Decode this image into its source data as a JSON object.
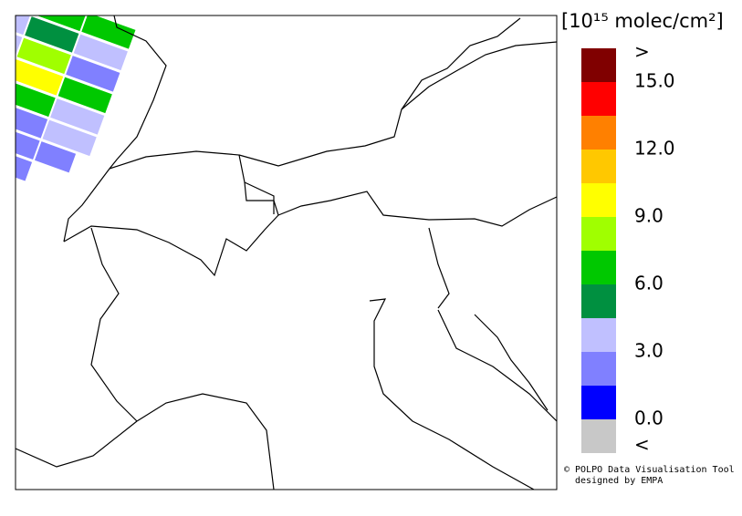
{
  "legend": {
    "unit": "[10¹⁵ molec/cm²]",
    "over_label": ">",
    "under_label": "<",
    "over_color": "#800000",
    "under_color": "#c8c8c8",
    "bounds": [
      0,
      15
    ],
    "colors": [
      "#0000ff",
      "#8080ff",
      "#c0c0ff",
      "#009040",
      "#00c800",
      "#a0ff00",
      "#ffff00",
      "#ffc800",
      "#ff8000",
      "#ff0000"
    ],
    "ticks": [
      {
        "value": 15,
        "label": "15.0"
      },
      {
        "value": 12,
        "label": "12.0"
      },
      {
        "value": 9,
        "label": "9.0"
      },
      {
        "value": 6,
        "label": "6.0"
      },
      {
        "value": 3,
        "label": "3.0"
      },
      {
        "value": 0,
        "label": "0.0"
      }
    ]
  },
  "credit": [
    "© POLPO Data Visualisation Tool",
    "designed by EMPA"
  ]
}
